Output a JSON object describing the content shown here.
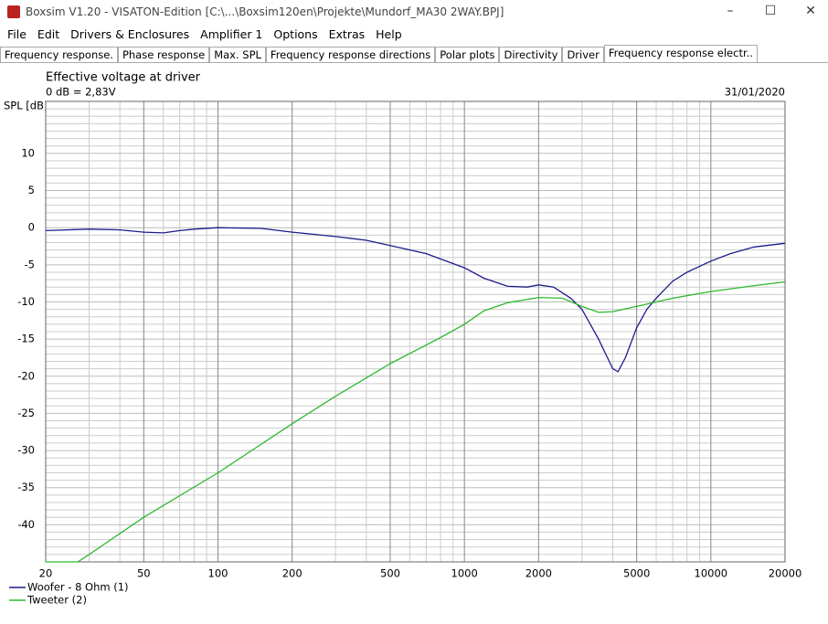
{
  "window": {
    "title": "Boxsim V1.20 - VISATON-Edition [C:\\...\\Boxsim120en\\Projekte\\Mundorf_MA30 2WAY.BPJ]"
  },
  "menu": [
    "File",
    "Edit",
    "Drivers & Enclosures",
    "Amplifier 1",
    "Options",
    "Extras",
    "Help"
  ],
  "tabs": [
    "Frequency response.",
    "Phase response",
    "Max. SPL",
    "Frequency response directions",
    "Polar plots",
    "Directivity",
    "Driver",
    "Frequency response electr.."
  ],
  "active_tab": 7,
  "chart_data": {
    "type": "line",
    "title": "Effective voltage at driver",
    "subtitle": "0 dB = 2,83V",
    "date": "31/01/2020",
    "y_label": "SPL [dB]",
    "x_scale": "log",
    "grid": true,
    "xlim": [
      20,
      20000
    ],
    "ylim": [
      -45,
      17
    ],
    "xticks": [
      20,
      50,
      100,
      200,
      500,
      1000,
      2000,
      5000,
      10000,
      20000
    ],
    "xminor": [
      30,
      40,
      60,
      70,
      80,
      90,
      300,
      400,
      600,
      700,
      800,
      900,
      3000,
      4000,
      6000,
      7000,
      8000,
      9000
    ],
    "yticks": [
      -40,
      -35,
      -30,
      -25,
      -20,
      -15,
      -10,
      -5,
      0,
      5,
      10
    ],
    "yminor": [
      -44,
      -43,
      -42,
      -41,
      -39,
      -38,
      -37,
      -36,
      -34,
      -33,
      -32,
      -31,
      -29,
      -28,
      -27,
      -26,
      -24,
      -23,
      -22,
      -21,
      -19,
      -18,
      -17,
      -16,
      -14,
      -13,
      -12,
      -11,
      -9,
      -8,
      -7,
      -6,
      -4,
      -3,
      -2,
      -1,
      1,
      2,
      3,
      4,
      6,
      7,
      8,
      9,
      11,
      12,
      13,
      14,
      15,
      16
    ],
    "series": [
      {
        "name": "Woofer - 8 Ohm (1)",
        "color": "#1c1c8c",
        "x": [
          20,
          30,
          40,
          50,
          60,
          70,
          80,
          100,
          150,
          200,
          300,
          400,
          500,
          700,
          1000,
          1200,
          1500,
          1800,
          2000,
          2300,
          2700,
          3000,
          3500,
          4000,
          4200,
          4500,
          5000,
          5500,
          6000,
          7000,
          8000,
          10000,
          12000,
          15000,
          20000
        ],
        "values": [
          -0.4,
          -0.2,
          -0.3,
          -0.6,
          -0.7,
          -0.4,
          -0.2,
          0,
          -0.1,
          -0.6,
          -1.2,
          -1.7,
          -2.4,
          -3.5,
          -5.4,
          -6.8,
          -7.9,
          -8.0,
          -7.7,
          -8.0,
          -9.5,
          -11,
          -15,
          -19,
          -19.4,
          -17.5,
          -13.5,
          -11,
          -9.5,
          -7.2,
          -6,
          -4.5,
          -3.5,
          -2.6,
          -2.1
        ]
      },
      {
        "name": "Tweeter (2)",
        "color": "#2eb82e",
        "x": [
          20,
          27,
          30,
          50,
          100,
          200,
          300,
          500,
          800,
          1000,
          1200,
          1500,
          2000,
          2500,
          3000,
          3500,
          4000,
          5000,
          7000,
          10000,
          15000,
          20000
        ],
        "values": [
          -45,
          -45,
          -44,
          -39,
          -33,
          -26.4,
          -22.7,
          -18.3,
          -14.8,
          -13,
          -11.2,
          -10.1,
          -9.4,
          -9.5,
          -10.6,
          -11.4,
          -11.3,
          -10.6,
          -9.5,
          -8.6,
          -7.8,
          -7.3
        ]
      }
    ]
  }
}
